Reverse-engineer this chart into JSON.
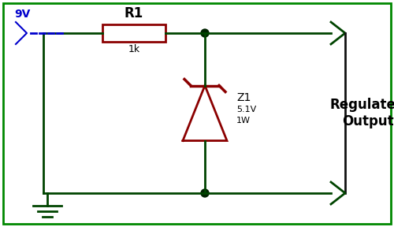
{
  "bg_color": "#ffffff",
  "border_color": "#008800",
  "wire_color": "#004400",
  "wire_color_right": "#111111",
  "wire_lw": 2.0,
  "resistor_color": "#8b0000",
  "zener_color": "#8b0000",
  "voltage_color": "#0000cc",
  "text_color": "#000000",
  "title": "9V",
  "r_label": "R1",
  "r_value": "1k",
  "z_label": "Z1",
  "z_value1": "5.1V",
  "z_value2": "1W",
  "output_label": "Regulated\nOutput",
  "junction_color": "#002200"
}
